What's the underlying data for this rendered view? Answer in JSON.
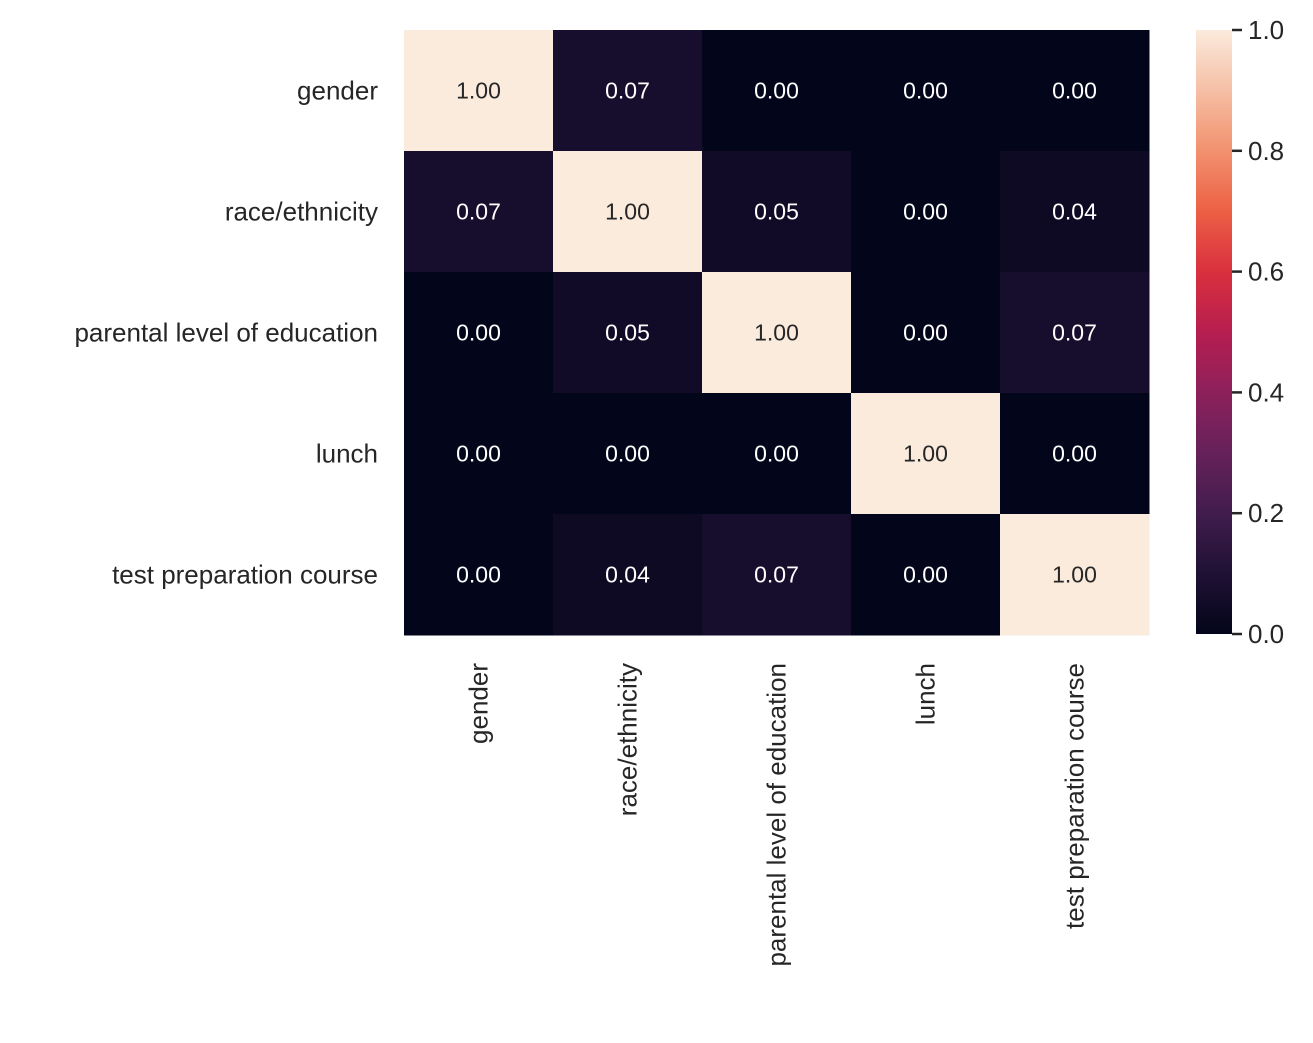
{
  "chart_data": {
    "type": "heatmap",
    "title": "",
    "xlabel": "",
    "ylabel": "",
    "rows": [
      "gender",
      "race/ethnicity",
      "parental level of education",
      "lunch",
      "test preparation course"
    ],
    "columns": [
      "gender",
      "race/ethnicity",
      "parental level of education",
      "lunch",
      "test preparation course"
    ],
    "values": [
      [
        1.0,
        0.07,
        0.0,
        0.0,
        0.0
      ],
      [
        0.07,
        1.0,
        0.05,
        0.0,
        0.04
      ],
      [
        0.0,
        0.05,
        1.0,
        0.0,
        0.07
      ],
      [
        0.0,
        0.0,
        0.0,
        1.0,
        0.0
      ],
      [
        0.0,
        0.04,
        0.07,
        0.0,
        1.0
      ]
    ],
    "annotation_format": "0.00",
    "colormap": "rocket",
    "colorbar": {
      "range": [
        0.0,
        1.0
      ],
      "ticks": [
        "0.0",
        "0.2",
        "0.4",
        "0.6",
        "0.8",
        "1.0"
      ]
    },
    "grid": false,
    "legend": "none"
  }
}
